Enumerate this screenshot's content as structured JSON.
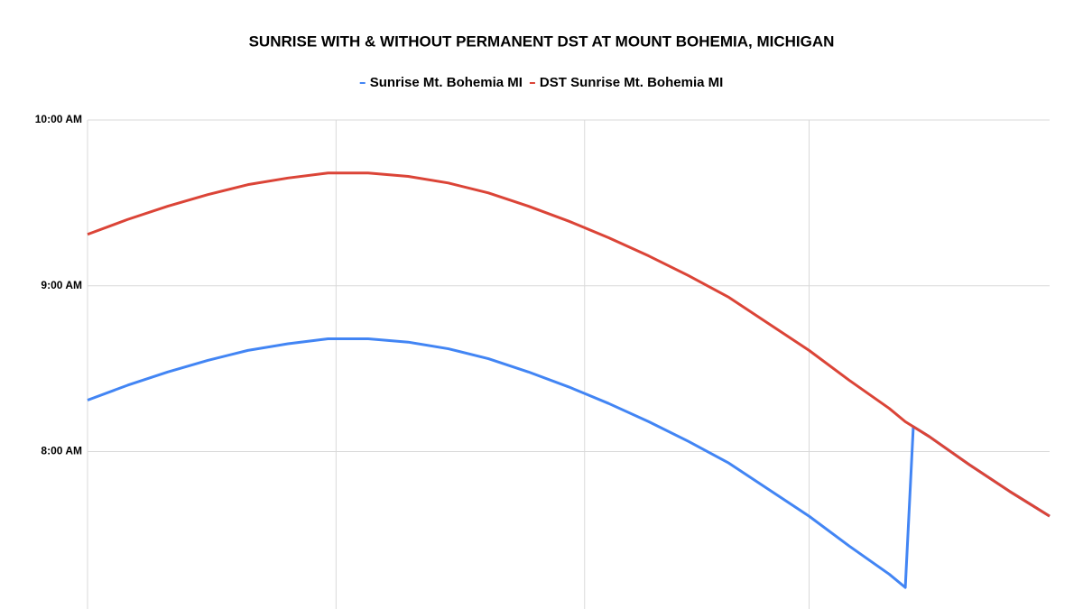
{
  "chart_data": {
    "type": "line",
    "title": "SUNRISE WITH & WITHOUT PERMANENT DST AT MOUNT BOHEMIA, MICHIGAN",
    "x": [
      0,
      5,
      10,
      15,
      20,
      25,
      30,
      35,
      40,
      45,
      50,
      55,
      60,
      62,
      65,
      70,
      75,
      80,
      85,
      90,
      95,
      100,
      102,
      103,
      105,
      110,
      115,
      120
    ],
    "series": [
      {
        "name": "Sunrise Mt. Bohemia MI",
        "color": "#4285f4",
        "values": [
          8.31,
          8.4,
          8.48,
          8.55,
          8.61,
          8.65,
          8.68,
          8.68,
          8.66,
          8.62,
          8.56,
          8.48,
          8.39,
          8.35,
          8.29,
          8.18,
          8.06,
          7.93,
          7.77,
          7.61,
          7.43,
          7.26,
          7.18,
          8.15,
          8.09,
          7.92,
          7.76,
          7.61
        ]
      },
      {
        "name": "DST Sunrise Mt. Bohemia MI",
        "color": "#db4437",
        "values": [
          9.31,
          9.4,
          9.48,
          9.55,
          9.61,
          9.65,
          9.68,
          9.68,
          9.66,
          9.62,
          9.56,
          9.48,
          9.39,
          9.35,
          9.29,
          9.18,
          9.06,
          8.93,
          8.77,
          8.61,
          8.43,
          8.26,
          8.18,
          8.15,
          8.09,
          7.92,
          7.76,
          7.61
        ]
      }
    ],
    "xlim": [
      0,
      120
    ],
    "xticks": [
      0,
      31,
      62,
      90
    ],
    "ylim": [
      7.05,
      10
    ],
    "yticks": [
      {
        "value": 8,
        "label": "8:00 AM"
      },
      {
        "value": 9,
        "label": "9:00 AM"
      },
      {
        "value": 10,
        "label": "10:00 AM"
      }
    ],
    "grid": true,
    "legend": "top"
  }
}
